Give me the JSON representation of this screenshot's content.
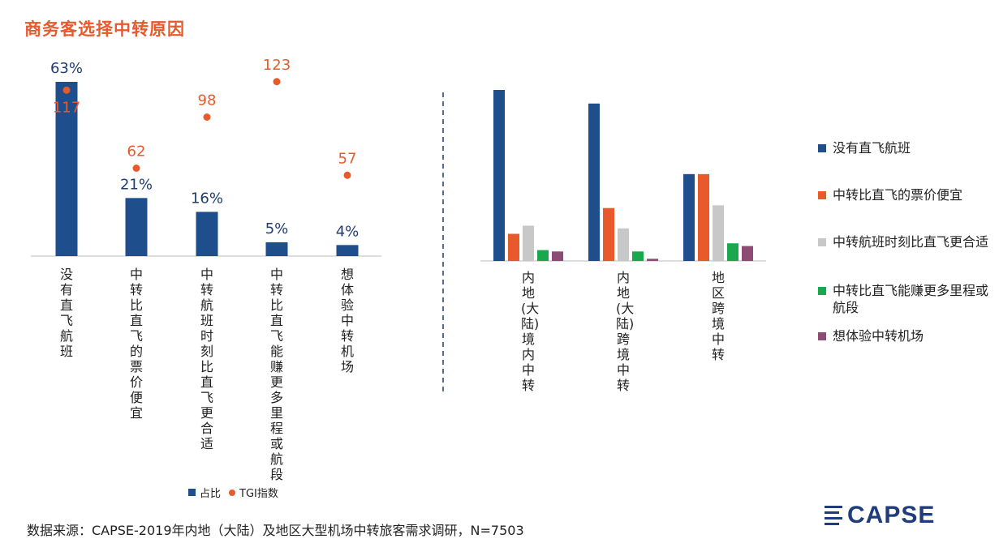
{
  "title": "商务客选择中转原因",
  "chart_data": [
    {
      "type": "bar",
      "categories": [
        "没有直飞航班",
        "中转比直飞的票价便宜",
        "中转航班时刻比直飞更合适",
        "中转比直飞能赚更多里程或航段",
        "想体验中转机场"
      ],
      "series": [
        {
          "name": "占比",
          "values": [
            63,
            21,
            16,
            5,
            4
          ],
          "labels": [
            "63%",
            "21%",
            "16%",
            "5%",
            "4%"
          ],
          "color": "#1f4e8c"
        },
        {
          "name": "TGI指数",
          "values": [
            117,
            62,
            98,
            123,
            57
          ],
          "labels": [
            "117",
            "62",
            "98",
            "123",
            "57"
          ],
          "color": "#e8592b"
        }
      ],
      "legend": "bottom"
    },
    {
      "type": "bar",
      "categories": [
        "内地(大陆)境内中转",
        "内地(大陆)跨境中转",
        "地区跨境中转"
      ],
      "series": [
        {
          "name": "没有直飞航班",
          "values": [
            63,
            58,
            32
          ],
          "color": "#1f4e8c"
        },
        {
          "name": "中转比直飞的票价便宜",
          "values": [
            10,
            19.5,
            32
          ],
          "color": "#e8592b"
        },
        {
          "name": "中转航班时刻比直飞更合适",
          "values": [
            13,
            12,
            20.5
          ],
          "color": "#c8c8c8"
        },
        {
          "name": "中转比直飞能赚更多里程或航段",
          "values": [
            4,
            3.5,
            6.5
          ],
          "color": "#1aa74e"
        },
        {
          "name": "想体验中转机场",
          "values": [
            3.5,
            0.8,
            5.5
          ],
          "color": "#8e4b73"
        }
      ],
      "legend": "right"
    }
  ],
  "legend_bottom": {
    "bar_label": "占比",
    "dot_label": "TGI指数"
  },
  "source": "数据来源：CAPSE-2019年内地（大陆）及地区大型机场中转旅客需求调研，N=7503",
  "logo": {
    "text": "CAPSE"
  },
  "colors": {
    "accent": "#e8592b",
    "navy": "#1f4e8c"
  }
}
